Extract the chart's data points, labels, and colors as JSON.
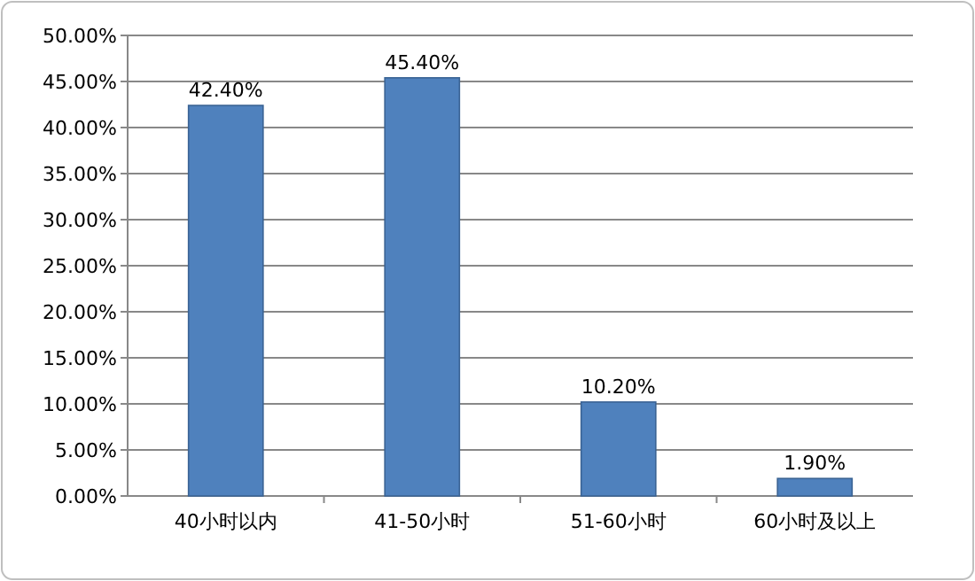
{
  "chart_data": {
    "type": "bar",
    "categories": [
      "40小时以内",
      "41-50小时",
      "51-60小时",
      "60小时及以上"
    ],
    "values": [
      42.4,
      45.4,
      10.2,
      1.9
    ],
    "value_labels": [
      "42.40%",
      "45.40%",
      "10.20%",
      "1.90%"
    ],
    "color": "#4f81bd",
    "ylim": [
      0,
      50
    ],
    "yticks": [
      {
        "value": 0,
        "label": "0.00%"
      },
      {
        "value": 5,
        "label": "5.00%"
      },
      {
        "value": 10,
        "label": "10.00%"
      },
      {
        "value": 15,
        "label": "15.00%"
      },
      {
        "value": 20,
        "label": "20.00%"
      },
      {
        "value": 25,
        "label": "25.00%"
      },
      {
        "value": 30,
        "label": "30.00%"
      },
      {
        "value": 35,
        "label": "35.00%"
      },
      {
        "value": 40,
        "label": "40.00%"
      },
      {
        "value": 45,
        "label": "45.00%"
      },
      {
        "value": 50,
        "label": "50.00%"
      }
    ],
    "grid": "y"
  }
}
